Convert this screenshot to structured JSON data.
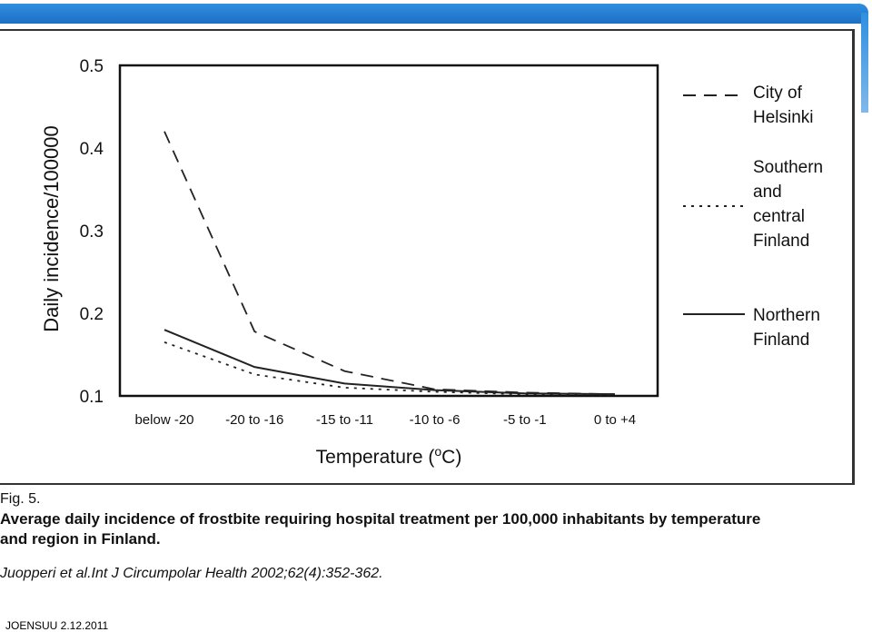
{
  "figure": {
    "label": "Fig. 5.",
    "title_line1": "Average daily incidence of frostbite requiring hospital treatment per 100,000 inhabitants by temperature",
    "title_line2": "and region in Finland.",
    "citation": "Juopperi et al.Int J Circumpolar Health 2002;62(4):352-362."
  },
  "footer": {
    "text": "JOENSUU 2.12.2011"
  },
  "chart_data": {
    "type": "line",
    "xlabel": "Temperature (oC)",
    "ylabel": "Daily incidence/100000",
    "categories": [
      "below -20",
      "-20 to -16",
      "-15 to -11",
      "-10 to -6",
      "-5 to -1",
      "0 to +4"
    ],
    "ylim": [
      0.1,
      0.5
    ],
    "yticks": [
      "0.1",
      "0.2",
      "0.3",
      "0.4",
      "0.5"
    ],
    "grid": false,
    "legend_position": "right",
    "series": [
      {
        "name": "City of Helsinki",
        "style": "dashed",
        "values": [
          0.42,
          0.178,
          0.13,
          0.108,
          0.104,
          0.102
        ]
      },
      {
        "name": "Southern and central Finland",
        "style": "dotted",
        "values": [
          0.165,
          0.126,
          0.11,
          0.105,
          0.102,
          0.101
        ]
      },
      {
        "name": "Northern Finland",
        "style": "solid",
        "values": [
          0.18,
          0.135,
          0.115,
          0.107,
          0.103,
          0.102
        ]
      }
    ],
    "colors": {
      "line": "#222222",
      "frame": "#111111"
    }
  }
}
